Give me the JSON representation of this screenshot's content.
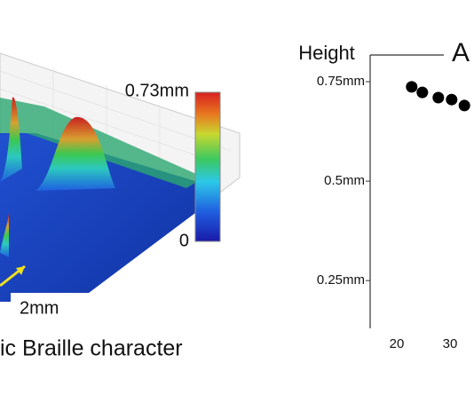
{
  "surface_figure": {
    "colorbar_max": "0.73mm",
    "colorbar_min": "0",
    "scale_label": "2mm",
    "caption": "ic Braille character"
  },
  "chart_data": {
    "type": "scatter",
    "y_label": "Height",
    "panel_label": "A",
    "x": [
      22.8,
      24.8,
      27.8,
      30.3,
      32.7
    ],
    "series": [
      {
        "color": "#000000",
        "values": [
          0.737,
          0.723,
          0.71,
          0.705,
          0.69
        ]
      }
    ],
    "xlim": [
      15,
      34.5
    ],
    "ylim": [
      0.13,
      0.817
    ],
    "xticks": [
      20,
      30
    ],
    "yticks": [
      {
        "value": 0.25,
        "label": "0.25mm"
      },
      {
        "value": 0.5,
        "label": "0.5mm"
      },
      {
        "value": 0.75,
        "label": "0.75mm"
      }
    ]
  }
}
